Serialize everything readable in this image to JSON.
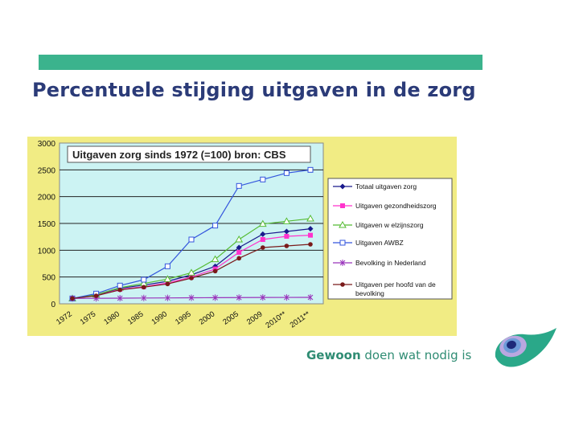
{
  "slide": {
    "title": "Percentuele stijging uitgaven in de zorg",
    "tagline_bold": "Gewoon",
    "tagline_rest": " doen wat nodig is"
  },
  "colors": {
    "top_bar": "#3bb38d",
    "title": "#2b3b78",
    "chart_frame": "#f1ec84",
    "plot_area": "#ccf3f3",
    "tagline": "#2f8c73"
  },
  "chart_data": {
    "type": "line",
    "title": "Uitgaven zorg sinds 1972 (=100) bron: CBS",
    "xlabel": "",
    "ylabel": "",
    "ylim": [
      0,
      3000
    ],
    "yticks": [
      "0",
      "500",
      "1000",
      "1500",
      "2000",
      "2500",
      "3000"
    ],
    "categories": [
      "1972",
      "1975",
      "1980",
      "1985",
      "1990",
      "1995",
      "2000",
      "2005",
      "2009",
      "2010**",
      "2011**"
    ],
    "grid": true,
    "legend": "right",
    "series": [
      {
        "name": "Totaal uitgaven  zorg",
        "color": "#1a1a8c",
        "marker": "diamond",
        "values": [
          100,
          160,
          290,
          350,
          420,
          540,
          700,
          1050,
          1300,
          1350,
          1400
        ]
      },
      {
        "name": "Uitgaven gezondheidszorg",
        "color": "#ff33cc",
        "marker": "square-filled",
        "values": [
          100,
          150,
          270,
          320,
          390,
          500,
          650,
          960,
          1200,
          1260,
          1280
        ]
      },
      {
        "name": "Uitgaven w elzijnszorg",
        "color": "#55bb33",
        "marker": "triangle",
        "values": [
          100,
          170,
          300,
          380,
          460,
          580,
          830,
          1200,
          1490,
          1540,
          1590
        ]
      },
      {
        "name": "Uitgaven AWBZ",
        "color": "#3355dd",
        "marker": "square-open",
        "values": [
          100,
          190,
          340,
          450,
          700,
          1200,
          1460,
          2200,
          2320,
          2440,
          2500
        ]
      },
      {
        "name": "Bevolking in Nederland",
        "color": "#9933bb",
        "marker": "star",
        "values": [
          100,
          102,
          105,
          108,
          110,
          112,
          114,
          116,
          118,
          119,
          120
        ]
      },
      {
        "name": "Uitgaven per hoofd van de bevolking",
        "color": "#7a1a1a",
        "marker": "circle",
        "values": [
          100,
          150,
          260,
          310,
          370,
          480,
          610,
          850,
          1050,
          1080,
          1110
        ]
      }
    ]
  }
}
